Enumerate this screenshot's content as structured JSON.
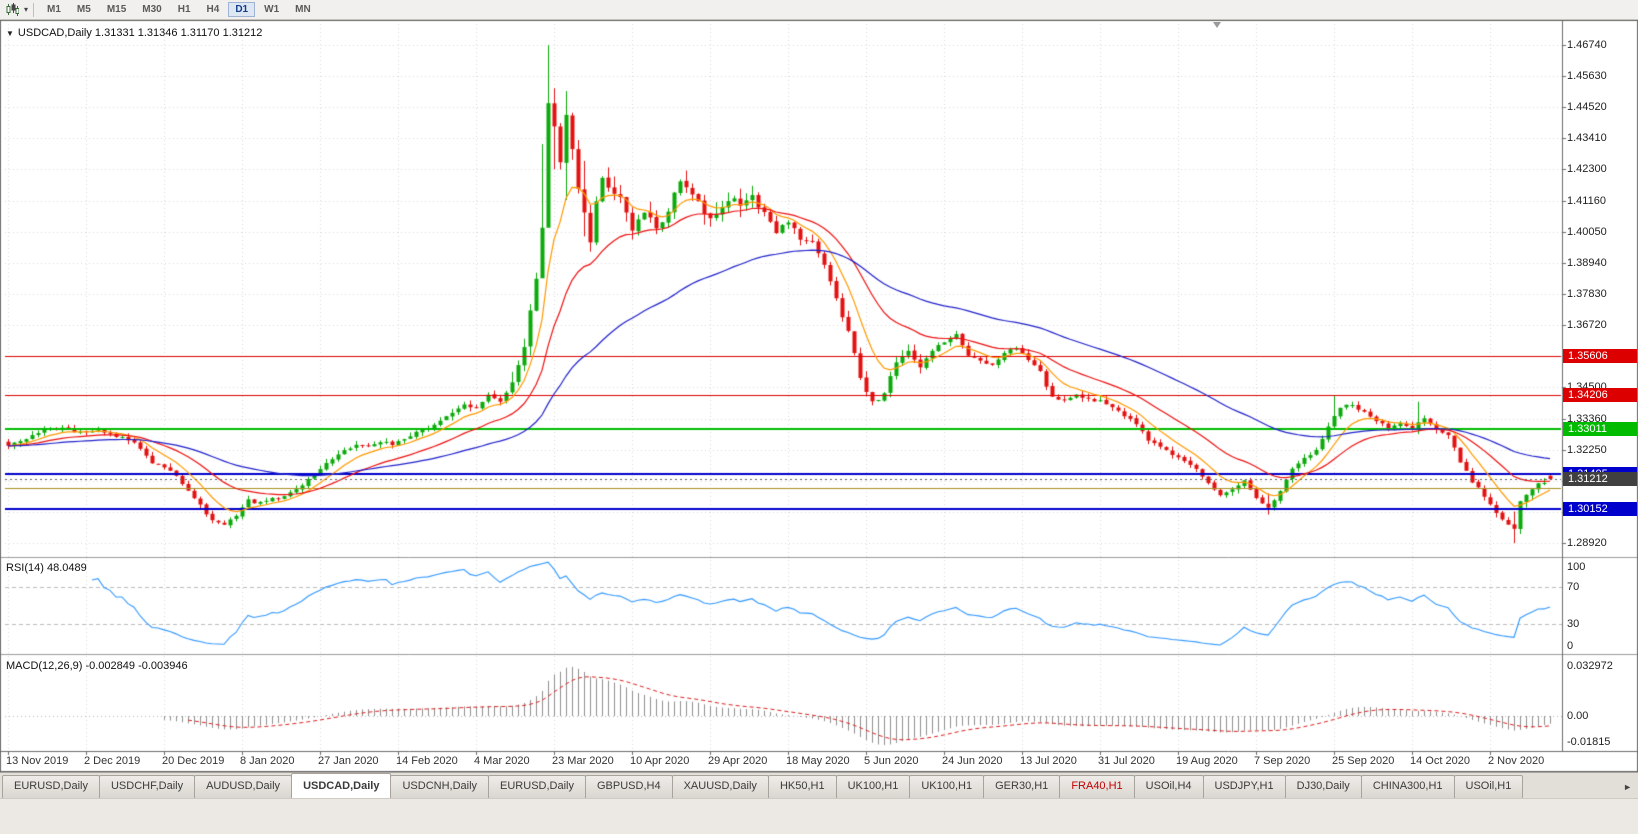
{
  "icons": {
    "caret_down": "▾",
    "collapse_marker": "▼",
    "tab_scroll_right": "►"
  },
  "toolbar": {
    "timeframes": [
      {
        "label": "M1"
      },
      {
        "label": "M5"
      },
      {
        "label": "M15"
      },
      {
        "label": "M30"
      },
      {
        "label": "H1"
      },
      {
        "label": "H4"
      },
      {
        "label": "D1",
        "active": true
      },
      {
        "label": "W1"
      },
      {
        "label": "MN"
      }
    ]
  },
  "chart": {
    "title": "USDCAD,Daily 1.31331 1.31346 1.31170 1.31212"
  },
  "indicators": {
    "rsi_label": "RSI(14) 48.0489",
    "macd_label": "MACD(12,26,9) -0.002849 -0.003946"
  },
  "axes": {
    "price_gridlines": [
      1.4674,
      1.4563,
      1.4452,
      1.4341,
      1.423,
      1.4116,
      1.4005,
      1.3894,
      1.3783,
      1.3672,
      1.3561,
      1.345,
      1.3336,
      1.3225,
      1.3114,
      1.3003,
      1.2892
    ],
    "price_labels": [
      "1.46740",
      "1.45630",
      "1.44520",
      "1.43410",
      "1.42300",
      "1.41160",
      "1.40050",
      "1.38940",
      "1.37830",
      "1.36720",
      "1.34500",
      "1.33360",
      "1.32250",
      "1.28920"
    ],
    "rsi_labels": [
      {
        "value": 100,
        "text": "100"
      },
      {
        "value": 70,
        "text": "70"
      },
      {
        "value": 30,
        "text": "30"
      },
      {
        "value": 0,
        "text": "0"
      }
    ],
    "macd_axis": {
      "top": "0.032972",
      "zero": "0.00",
      "bottom": "-0.01815"
    },
    "date_labels": [
      {
        "candle_index": 0,
        "text": "13 Nov 2019"
      },
      {
        "candle_index": 13,
        "text": "2 Dec 2019"
      },
      {
        "candle_index": 26,
        "text": "20 Dec 2019"
      },
      {
        "candle_index": 39,
        "text": "8 Jan 2020"
      },
      {
        "candle_index": 52,
        "text": "27 Jan 2020"
      },
      {
        "candle_index": 65,
        "text": "14 Feb 2020"
      },
      {
        "candle_index": 78,
        "text": "4 Mar 2020"
      },
      {
        "candle_index": 91,
        "text": "23 Mar 2020"
      },
      {
        "candle_index": 104,
        "text": "10 Apr 2020"
      },
      {
        "candle_index": 117,
        "text": "29 Apr 2020"
      },
      {
        "candle_index": 130,
        "text": "18 May 2020"
      },
      {
        "candle_index": 143,
        "text": "5 Jun 2020"
      },
      {
        "candle_index": 156,
        "text": "24 Jun 2020"
      },
      {
        "candle_index": 169,
        "text": "13 Jul 2020"
      },
      {
        "candle_index": 182,
        "text": "31 Jul 2020"
      },
      {
        "candle_index": 195,
        "text": "19 Aug 2020"
      },
      {
        "candle_index": 208,
        "text": "7 Sep 2020"
      },
      {
        "candle_index": 221,
        "text": "25 Sep 2020"
      },
      {
        "candle_index": 234,
        "text": "14 Oct 2020"
      },
      {
        "candle_index": 247,
        "text": "2 Nov 2020"
      }
    ]
  },
  "levels": [
    {
      "value": 1.35606,
      "text": "1.35606",
      "color": "#dd0000",
      "line_width": 1,
      "badge": true
    },
    {
      "value": 1.34206,
      "text": "1.34206",
      "color": "#dd0000",
      "line_width": 1,
      "badge": true
    },
    {
      "value": 1.33011,
      "text": "1.33011",
      "color": "#00bb00",
      "line_width": 2,
      "badge": true
    },
    {
      "value": 1.31405,
      "text": "1.31405",
      "color": "#0000cc",
      "line_width": 2,
      "badge": true
    },
    {
      "value": 1.30152,
      "text": "1.30152",
      "color": "#0000cc",
      "line_width": 2,
      "badge": true
    },
    {
      "value": 1.309,
      "text": "",
      "color": "#a89020",
      "line_width": 1,
      "badge": false
    }
  ],
  "current_price": {
    "value": 1.31212,
    "text": "1.31212",
    "badge_color": "#404040",
    "line_color": "#666666"
  },
  "chart_data": {
    "type": "candlestick",
    "symbol": "USDCAD",
    "timeframe": "Daily",
    "current_ohlc": {
      "open": 1.31331,
      "high": 1.31346,
      "low": 1.3117,
      "close": 1.31212
    },
    "candle_count": 258,
    "price_range": [
      1.2853,
      1.475
    ],
    "up_color": "#0caa0c",
    "down_color": "#e31212",
    "close_anchors": [
      [
        0,
        1.324
      ],
      [
        3,
        1.3268
      ],
      [
        6,
        1.3298
      ],
      [
        9,
        1.3308
      ],
      [
        12,
        1.329
      ],
      [
        15,
        1.3298
      ],
      [
        18,
        1.3275
      ],
      [
        21,
        1.3252
      ],
      [
        24,
        1.318
      ],
      [
        26,
        1.3165
      ],
      [
        28,
        1.313
      ],
      [
        30,
        1.308
      ],
      [
        32,
        1.303
      ],
      [
        34,
        1.2972
      ],
      [
        36,
        1.2958
      ],
      [
        38,
        1.2992
      ],
      [
        40,
        1.3048
      ],
      [
        42,
        1.3035
      ],
      [
        44,
        1.3052
      ],
      [
        46,
        1.3062
      ],
      [
        48,
        1.3088
      ],
      [
        50,
        1.312
      ],
      [
        52,
        1.3158
      ],
      [
        54,
        1.3188
      ],
      [
        56,
        1.3222
      ],
      [
        58,
        1.3248
      ],
      [
        60,
        1.3242
      ],
      [
        62,
        1.3252
      ],
      [
        64,
        1.3248
      ],
      [
        66,
        1.3262
      ],
      [
        68,
        1.3288
      ],
      [
        70,
        1.3305
      ],
      [
        72,
        1.3328
      ],
      [
        74,
        1.3355
      ],
      [
        76,
        1.3392
      ],
      [
        78,
        1.3372
      ],
      [
        80,
        1.3418
      ],
      [
        82,
        1.3398
      ],
      [
        84,
        1.3468
      ],
      [
        86,
        1.3595
      ],
      [
        88,
        1.383
      ],
      [
        89,
        1.401
      ],
      [
        90,
        1.446
      ],
      [
        91,
        1.438
      ],
      [
        92,
        1.426
      ],
      [
        93,
        1.443
      ],
      [
        94,
        1.431
      ],
      [
        95,
        1.415
      ],
      [
        96,
        1.408
      ],
      [
        97,
        1.399
      ],
      [
        98,
        1.413
      ],
      [
        99,
        1.421
      ],
      [
        100,
        1.417
      ],
      [
        102,
        1.4125
      ],
      [
        104,
        1.401
      ],
      [
        106,
        1.4075
      ],
      [
        108,
        1.4015
      ],
      [
        110,
        1.4088
      ],
      [
        112,
        1.4198
      ],
      [
        114,
        1.4135
      ],
      [
        116,
        1.4075
      ],
      [
        118,
        1.4062
      ],
      [
        120,
        1.4125
      ],
      [
        122,
        1.409
      ],
      [
        124,
        1.4122
      ],
      [
        126,
        1.4078
      ],
      [
        128,
        1.4005
      ],
      [
        130,
        1.4048
      ],
      [
        132,
        1.3985
      ],
      [
        134,
        1.3962
      ],
      [
        136,
        1.3885
      ],
      [
        138,
        1.3765
      ],
      [
        140,
        1.3655
      ],
      [
        142,
        1.348
      ],
      [
        144,
        1.3388
      ],
      [
        146,
        1.3428
      ],
      [
        148,
        1.3545
      ],
      [
        150,
        1.3572
      ],
      [
        152,
        1.3522
      ],
      [
        154,
        1.3585
      ],
      [
        156,
        1.3612
      ],
      [
        158,
        1.3638
      ],
      [
        160,
        1.3562
      ],
      [
        162,
        1.3548
      ],
      [
        164,
        1.3528
      ],
      [
        166,
        1.3572
      ],
      [
        168,
        1.3592
      ],
      [
        170,
        1.3552
      ],
      [
        172,
        1.3505
      ],
      [
        174,
        1.3412
      ],
      [
        176,
        1.3398
      ],
      [
        178,
        1.3418
      ],
      [
        180,
        1.3408
      ],
      [
        182,
        1.3398
      ],
      [
        184,
        1.3382
      ],
      [
        186,
        1.3348
      ],
      [
        188,
        1.3318
      ],
      [
        190,
        1.3262
      ],
      [
        192,
        1.3232
      ],
      [
        194,
        1.3208
      ],
      [
        196,
        1.3182
      ],
      [
        198,
        1.3158
      ],
      [
        200,
        1.3108
      ],
      [
        202,
        1.3062
      ],
      [
        204,
        1.3082
      ],
      [
        206,
        1.3118
      ],
      [
        208,
        1.3058
      ],
      [
        210,
        1.3018
      ],
      [
        212,
        1.3078
      ],
      [
        214,
        1.3158
      ],
      [
        216,
        1.3198
      ],
      [
        218,
        1.3222
      ],
      [
        220,
        1.3308
      ],
      [
        222,
        1.3378
      ],
      [
        224,
        1.3388
      ],
      [
        226,
        1.3358
      ],
      [
        228,
        1.3328
      ],
      [
        230,
        1.3308
      ],
      [
        232,
        1.3318
      ],
      [
        234,
        1.3308
      ],
      [
        236,
        1.3338
      ],
      [
        238,
        1.3298
      ],
      [
        240,
        1.3278
      ],
      [
        242,
        1.3178
      ],
      [
        244,
        1.3118
      ],
      [
        246,
        1.3058
      ],
      [
        248,
        1.2998
      ],
      [
        250,
        1.2955
      ],
      [
        251,
        1.2935
      ],
      [
        252,
        1.3042
      ],
      [
        254,
        1.3092
      ],
      [
        256,
        1.3108
      ],
      [
        257,
        1.31212
      ]
    ],
    "wick_overrides": [
      [
        89,
        1.432,
        1.388
      ],
      [
        90,
        1.4674,
        1.412
      ],
      [
        91,
        1.452,
        1.423
      ],
      [
        93,
        1.451,
        1.412
      ],
      [
        96,
        1.426,
        1.399
      ],
      [
        210,
        1.307,
        1.2994
      ],
      [
        221,
        1.3422,
        1.33
      ],
      [
        235,
        1.3398,
        1.3282
      ],
      [
        251,
        1.3005,
        1.2892
      ]
    ],
    "moving_averages": [
      {
        "period": 8,
        "color": "#ff9900"
      },
      {
        "period": 21,
        "color": "#ee1111"
      },
      {
        "period": 55,
        "color": "#2222cc"
      }
    ],
    "rsi": {
      "period": 14,
      "current": 48.0489,
      "color": "#3399ff",
      "levels": [
        70,
        30
      ],
      "range": [
        0,
        100
      ]
    },
    "macd": {
      "fast": 12,
      "slow": 26,
      "signal_period": 9,
      "macd_current": -0.002849,
      "signal_current": -0.003946,
      "histogram_color": "#909090",
      "signal_color": "#dd2222",
      "range": [
        -0.01815,
        0.032972
      ]
    }
  },
  "tabbar": {
    "tabs": [
      {
        "label": "EURUSD,Daily"
      },
      {
        "label": "USDCHF,Daily"
      },
      {
        "label": "AUDUSD,Daily"
      },
      {
        "label": "USDCAD,Daily",
        "active": true
      },
      {
        "label": "USDCNH,Daily"
      },
      {
        "label": "EURUSD,Daily"
      },
      {
        "label": "GBPUSD,H4"
      },
      {
        "label": "XAUUSD,Daily"
      },
      {
        "label": "HK50,H1"
      },
      {
        "label": "UK100,H1"
      },
      {
        "label": "UK100,H1"
      },
      {
        "label": "GER30,H1"
      },
      {
        "label": "FRA40,H1",
        "color": "#c00000"
      },
      {
        "label": "USOil,H4"
      },
      {
        "label": "USDJPY,H1"
      },
      {
        "label": "DJ30,Daily"
      },
      {
        "label": "CHINA300,H1"
      },
      {
        "label": "USOil,H1"
      }
    ]
  }
}
